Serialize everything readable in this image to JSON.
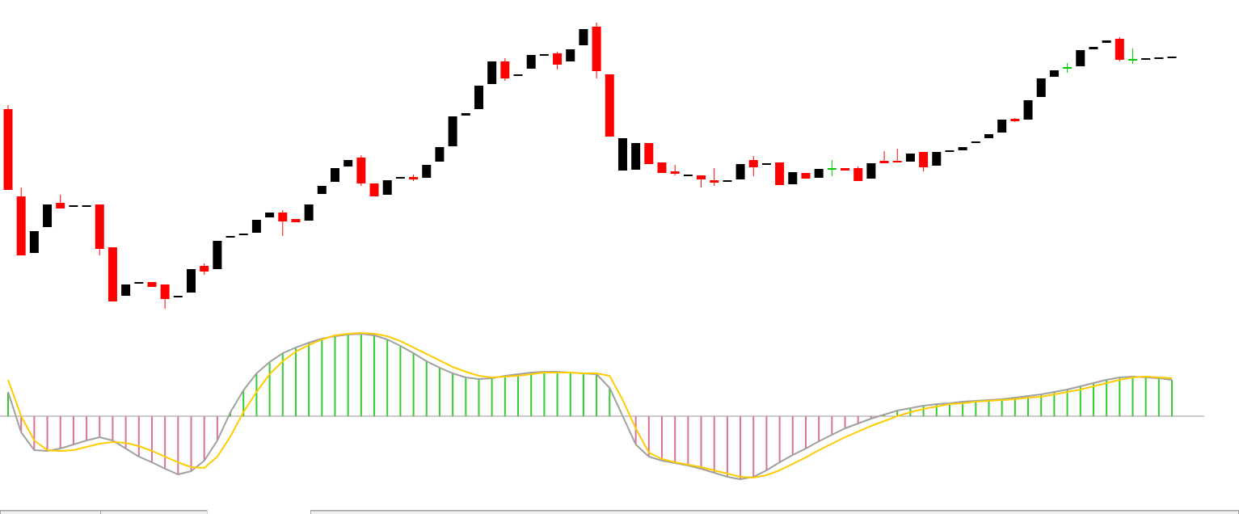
{
  "chart_data": [
    {
      "type": "candlestick",
      "up_color": "#000000",
      "down_color": "#ff0000",
      "doji_color": "#00cc00",
      "ylim": [
        0,
        400
      ],
      "open": [
        265,
        157,
        87,
        119,
        149,
        145,
        145,
        147,
        94,
        34,
        50,
        51,
        48,
        33,
        38,
        71,
        67,
        107,
        110,
        112,
        131,
        137,
        129,
        127,
        160,
        175,
        194,
        205,
        173,
        159,
        180,
        181,
        180,
        200,
        219,
        257,
        265,
        296,
        324,
        307,
        315,
        332,
        334,
        324,
        344,
        367,
        308,
        189,
        190,
        223,
        199,
        188,
        183,
        183,
        177,
        176,
        178,
        202,
        197,
        199,
        172,
        186,
        180,
        191,
        192,
        192,
        179,
        201,
        201,
        200,
        212,
        195,
        213,
        214,
        223,
        229,
        236,
        253,
        252,
        280,
        305,
        316,
        318,
        339,
        347,
        352,
        326,
        327,
        328,
        329
      ],
      "high": [
        270,
        168,
        114,
        147,
        159,
        145,
        145,
        147,
        94,
        48,
        50,
        51,
        48,
        33,
        67,
        74,
        102,
        107,
        110,
        128,
        137,
        140,
        129,
        147,
        170,
        192,
        202,
        208,
        173,
        177,
        180,
        184,
        196,
        218,
        256,
        260,
        294,
        324,
        328,
        307,
        332,
        332,
        336,
        339,
        364,
        372,
        308,
        229,
        223,
        223,
        199,
        196,
        183,
        183,
        192,
        176,
        197,
        207,
        197,
        199,
        187,
        186,
        191,
        202,
        192,
        194,
        198,
        213,
        216,
        210,
        212,
        212,
        213,
        218,
        225,
        234,
        252,
        254,
        276,
        303,
        313,
        322,
        338,
        342,
        350,
        354,
        340,
        327,
        328,
        329
      ],
      "low": [
        165,
        84,
        87,
        119,
        142,
        145,
        145,
        84,
        27,
        34,
        50,
        45,
        18,
        33,
        38,
        60,
        67,
        107,
        110,
        112,
        131,
        108,
        125,
        127,
        160,
        175,
        194,
        170,
        157,
        159,
        180,
        176,
        180,
        200,
        219,
        257,
        265,
        296,
        300,
        307,
        315,
        332,
        314,
        324,
        344,
        303,
        231,
        189,
        190,
        197,
        186,
        183,
        183,
        168,
        170,
        176,
        178,
        182,
        197,
        171,
        172,
        179,
        180,
        182,
        189,
        176,
        179,
        198,
        199,
        200,
        188,
        195,
        213,
        214,
        223,
        229,
        236,
        249,
        252,
        280,
        305,
        310,
        318,
        339,
        347,
        324,
        321,
        327,
        328,
        329
      ],
      "close": [
        165,
        84,
        114,
        147,
        142,
        145,
        145,
        92,
        27,
        48,
        50,
        45,
        30,
        33,
        67,
        64,
        102,
        107,
        110,
        128,
        137,
        126,
        125,
        147,
        170,
        192,
        202,
        173,
        157,
        177,
        180,
        178,
        196,
        218,
        256,
        260,
        294,
        324,
        303,
        307,
        332,
        332,
        320,
        339,
        364,
        312,
        231,
        229,
        223,
        197,
        186,
        185,
        183,
        178,
        174,
        176,
        197,
        193,
        197,
        171,
        187,
        179,
        191,
        191,
        189,
        176,
        198,
        198,
        199,
        210,
        193,
        212,
        213,
        218,
        225,
        234,
        252,
        250,
        276,
        303,
        313,
        316,
        338,
        342,
        350,
        326,
        326,
        327,
        328,
        329
      ]
    },
    {
      "type": "macd",
      "ylim": [
        -85,
        115
      ],
      "zero_line_color": "#999999",
      "histogram_series": 0,
      "positive_color": "#33cc33",
      "negative_color": "#d9739a",
      "series": [
        {
          "color": "#a0a0a0",
          "values": [
            30,
            -20,
            -42,
            -43,
            -40,
            -35,
            -30,
            -26,
            -30,
            -40,
            -50,
            -57,
            -65,
            -72,
            -68,
            -55,
            -30,
            5,
            32,
            53,
            67,
            78,
            85,
            91,
            96,
            99,
            101,
            102,
            100,
            95,
            87,
            78,
            68,
            60,
            53,
            48,
            46,
            47,
            50,
            52,
            54,
            55,
            55,
            54,
            53,
            52,
            35,
            0,
            -35,
            -50,
            -55,
            -58,
            -61,
            -65,
            -70,
            -75,
            -78,
            -75,
            -67,
            -57,
            -48,
            -40,
            -31,
            -23,
            -15,
            -9,
            -3,
            2,
            7,
            10,
            13,
            15,
            16,
            18,
            19,
            20,
            21,
            23,
            25,
            27,
            30,
            33,
            37,
            41,
            45,
            48,
            49,
            48,
            47,
            45
          ]
        },
        {
          "color": "#ffcc00",
          "values": [
            45,
            0,
            -30,
            -42,
            -43,
            -42,
            -38,
            -34,
            -32,
            -33,
            -37,
            -43,
            -50,
            -57,
            -63,
            -64,
            -50,
            -25,
            5,
            30,
            52,
            68,
            80,
            88,
            95,
            100,
            102,
            103,
            102,
            99,
            93,
            85,
            77,
            69,
            61,
            55,
            50,
            48,
            49,
            50,
            52,
            54,
            54,
            54,
            53,
            53,
            50,
            20,
            -15,
            -45,
            -53,
            -57,
            -60,
            -63,
            -67,
            -71,
            -75,
            -76,
            -73,
            -67,
            -59,
            -51,
            -42,
            -34,
            -26,
            -19,
            -12,
            -6,
            0,
            5,
            9,
            12,
            15,
            16,
            18,
            19,
            20,
            21,
            23,
            24,
            27,
            30,
            33,
            37,
            41,
            45,
            48,
            49,
            48,
            47
          ]
        }
      ]
    }
  ]
}
